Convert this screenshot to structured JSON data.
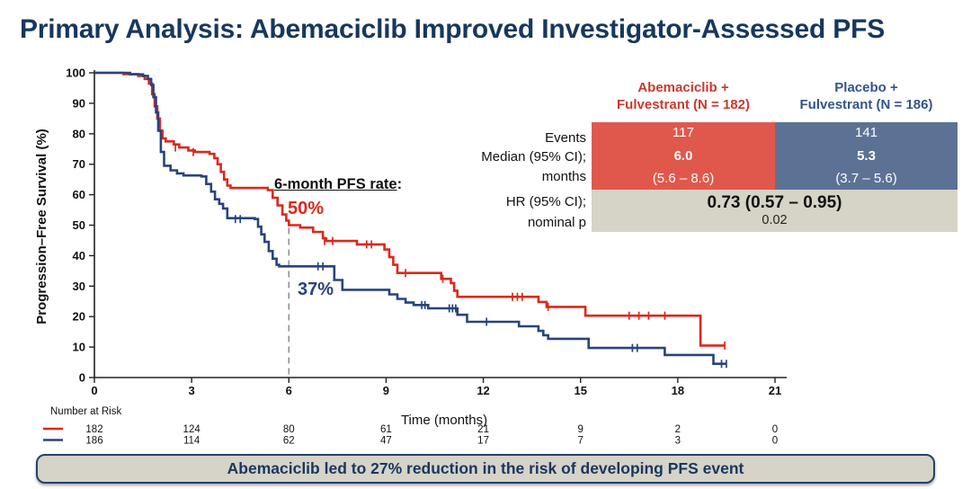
{
  "title": "Primary Analysis: Abemaciclib Improved Investigator-Assessed PFS",
  "colors": {
    "title_navy": "#17375E",
    "curve_red": "#DA291C",
    "curve_blue": "#27447C",
    "header_red_text": "#C9392E",
    "header_blue_text": "#34548A",
    "cell_red_fill": "#E0584C",
    "cell_blue_fill": "#5C7295",
    "gray_band_fill": "#D6D3C7",
    "banner_fill": "#D6D3C8",
    "banner_border": "#24426B",
    "dashed_line": "#8F8F8F",
    "axis": "#222222"
  },
  "chart_data": {
    "type": "line",
    "subtype": "kaplan-meier-step",
    "title": "",
    "xlabel": "Time (months)",
    "ylabel": "Progression–Free Survival (%)",
    "xlim": [
      0,
      21
    ],
    "ylim": [
      0,
      100
    ],
    "x_ticks": [
      0,
      3,
      6,
      9,
      12,
      15,
      18,
      21
    ],
    "y_ticks": [
      0,
      10,
      20,
      30,
      40,
      50,
      60,
      70,
      80,
      90,
      100
    ],
    "grid": false,
    "legend_position": "none",
    "reference_line": {
      "x": 6,
      "top_pct": 50,
      "style": "dashed"
    },
    "series": [
      {
        "name": "Abemaciclib + Fulvestrant",
        "color": "#DA291C",
        "six_month_pfs_rate": 50,
        "steps": [
          [
            0,
            100
          ],
          [
            0.9,
            99.6
          ],
          [
            1.35,
            99
          ],
          [
            1.55,
            98
          ],
          [
            1.68,
            96.5
          ],
          [
            1.78,
            93
          ],
          [
            1.86,
            89
          ],
          [
            1.94,
            85
          ],
          [
            2.02,
            81
          ],
          [
            2.1,
            78.5
          ],
          [
            2.2,
            77.5
          ],
          [
            2.45,
            76.5
          ],
          [
            2.62,
            75.5
          ],
          [
            2.9,
            74.5
          ],
          [
            3.1,
            74
          ],
          [
            3.55,
            73.4
          ],
          [
            3.7,
            72
          ],
          [
            3.8,
            70
          ],
          [
            3.9,
            67.5
          ],
          [
            4.0,
            65
          ],
          [
            4.1,
            63
          ],
          [
            4.2,
            62.2
          ],
          [
            5.35,
            61.5
          ],
          [
            5.5,
            59
          ],
          [
            5.65,
            56.5
          ],
          [
            5.8,
            53.5
          ],
          [
            5.92,
            51.5
          ],
          [
            6.0,
            50
          ],
          [
            6.35,
            49.2
          ],
          [
            6.75,
            47.8
          ],
          [
            7.05,
            45.7
          ],
          [
            7.15,
            44.8
          ],
          [
            8.1,
            43.7
          ],
          [
            8.95,
            42
          ],
          [
            9.1,
            39.5
          ],
          [
            9.22,
            37
          ],
          [
            9.35,
            34.3
          ],
          [
            10.7,
            32.4
          ],
          [
            11.0,
            31
          ],
          [
            11.1,
            28.5
          ],
          [
            11.2,
            26.5
          ],
          [
            13.7,
            24.8
          ],
          [
            13.95,
            23.2
          ],
          [
            15.15,
            20.3
          ],
          [
            18.7,
            10.5
          ],
          [
            19.45,
            10.5
          ]
        ],
        "censors": [
          [
            2.5,
            75.5
          ],
          [
            3.05,
            74
          ],
          [
            7.1,
            44.8
          ],
          [
            7.35,
            44.8
          ],
          [
            8.4,
            43.7
          ],
          [
            8.55,
            43.7
          ],
          [
            9.6,
            34.3
          ],
          [
            10.75,
            32.4
          ],
          [
            12.9,
            26.5
          ],
          [
            13.05,
            26.5
          ],
          [
            13.2,
            26.5
          ],
          [
            14.0,
            23.2
          ],
          [
            16.5,
            20.3
          ],
          [
            16.8,
            20.3
          ],
          [
            17.1,
            20.3
          ],
          [
            17.6,
            20.3
          ],
          [
            19.45,
            10.5
          ]
        ]
      },
      {
        "name": "Placebo + Fulvestrant",
        "color": "#27447C",
        "six_month_pfs_rate": 37,
        "steps": [
          [
            0,
            100
          ],
          [
            1.1,
            99.5
          ],
          [
            1.5,
            99
          ],
          [
            1.65,
            98
          ],
          [
            1.75,
            96
          ],
          [
            1.82,
            92
          ],
          [
            1.9,
            87
          ],
          [
            1.97,
            81
          ],
          [
            2.05,
            74
          ],
          [
            2.15,
            69.5
          ],
          [
            2.35,
            68
          ],
          [
            2.55,
            67
          ],
          [
            2.75,
            66.3
          ],
          [
            3.3,
            66
          ],
          [
            3.45,
            63.5
          ],
          [
            3.6,
            61
          ],
          [
            3.72,
            58.5
          ],
          [
            3.85,
            57
          ],
          [
            3.97,
            55.5
          ],
          [
            4.1,
            52.3
          ],
          [
            4.95,
            52
          ],
          [
            5.05,
            49.5
          ],
          [
            5.15,
            47
          ],
          [
            5.25,
            44.5
          ],
          [
            5.38,
            41.5
          ],
          [
            5.5,
            39
          ],
          [
            5.62,
            37
          ],
          [
            5.7,
            36.5
          ],
          [
            7.4,
            32
          ],
          [
            7.65,
            28.8
          ],
          [
            9.1,
            27.3
          ],
          [
            9.35,
            25.8
          ],
          [
            9.6,
            24.6
          ],
          [
            9.85,
            23.8
          ],
          [
            10.3,
            22.7
          ],
          [
            11.2,
            20.6
          ],
          [
            11.5,
            18.3
          ],
          [
            13.1,
            16.8
          ],
          [
            13.7,
            15.3
          ],
          [
            13.85,
            13.9
          ],
          [
            14.0,
            12.7
          ],
          [
            15.25,
            9.7
          ],
          [
            17.6,
            7.4
          ],
          [
            19.1,
            4.5
          ],
          [
            19.5,
            4.5
          ]
        ],
        "censors": [
          [
            4.35,
            52
          ],
          [
            4.5,
            52
          ],
          [
            6.9,
            36.5
          ],
          [
            7.05,
            36.5
          ],
          [
            10.1,
            23.8
          ],
          [
            10.2,
            23.8
          ],
          [
            10.95,
            22.7
          ],
          [
            11.05,
            22.7
          ],
          [
            11.15,
            22.7
          ],
          [
            12.1,
            18.3
          ],
          [
            16.6,
            9.7
          ],
          [
            16.75,
            9.7
          ],
          [
            19.35,
            4.5
          ],
          [
            19.5,
            4.5
          ]
        ]
      }
    ],
    "number_at_risk": {
      "label": "Number at Risk",
      "months": [
        0,
        3,
        6,
        9,
        12,
        15,
        18,
        21
      ],
      "rows": [
        {
          "name": "Abemaciclib + Fulvestrant",
          "color": "#DA291C",
          "values": [
            182,
            124,
            80,
            61,
            21,
            9,
            2,
            0
          ]
        },
        {
          "name": "Placebo + Fulvestrant",
          "color": "#27447C",
          "values": [
            186,
            114,
            62,
            47,
            17,
            7,
            3,
            0
          ]
        }
      ]
    }
  },
  "annotations": {
    "six_month_label": "6-month PFS rate",
    "colon": ":",
    "abemaciclib_rate": "50%",
    "placebo_rate": "37%"
  },
  "results_table": {
    "columns": [
      {
        "line1": "Abemaciclib +",
        "line2": "Fulvestrant (N = 182)",
        "text_color": "#C9392E",
        "fill": "#E0584C"
      },
      {
        "line1": "Placebo +",
        "line2": "Fulvestrant (N = 186)",
        "text_color": "#34548A",
        "fill": "#5C7295"
      }
    ],
    "row_labels": [
      "Events",
      "Median (95% CI);",
      "months",
      "HR (95% CI);",
      "nominal p"
    ],
    "events": [
      "117",
      "141"
    ],
    "median": [
      "6.0",
      "5.3"
    ],
    "median_ci": [
      "(5.6 – 8.6)",
      "(3.7 – 5.6)"
    ],
    "hr": "0.73 (0.57 – 0.95)",
    "nominal_p": "0.02"
  },
  "banner": {
    "text": "Abemaciclib led to 27% reduction in the risk of developing PFS event"
  }
}
